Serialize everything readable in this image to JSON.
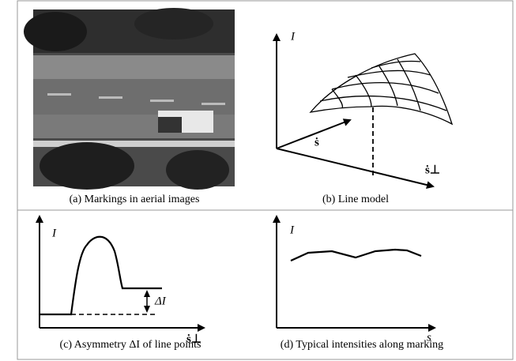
{
  "panels": [
    {
      "caption": "(a) Markings in aerial images"
    },
    {
      "caption": "(b) Line model",
      "labels": {
        "y_axis": "I",
        "axis_s": "ṡ",
        "axis_s_perp": "ṡ⊥"
      }
    },
    {
      "caption": "(c) Asymmetry ΔI of line points",
      "labels": {
        "y_axis": "I",
        "x_axis": "ṡ⊥",
        "delta": "ΔI"
      }
    },
    {
      "caption": "(d) Typical intensities along marking",
      "labels": {
        "y_axis": "I",
        "x_axis": "s"
      }
    }
  ]
}
